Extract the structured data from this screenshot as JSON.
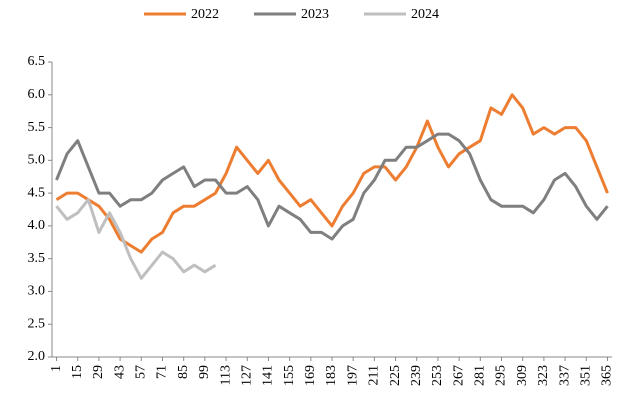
{
  "chart_data": {
    "type": "line",
    "x": [
      1,
      8,
      15,
      22,
      29,
      36,
      43,
      50,
      57,
      64,
      71,
      78,
      85,
      92,
      99,
      106,
      113,
      120,
      127,
      134,
      141,
      148,
      155,
      162,
      169,
      176,
      183,
      190,
      197,
      204,
      211,
      218,
      225,
      232,
      239,
      246,
      253,
      260,
      267,
      274,
      281,
      288,
      295,
      302,
      309,
      316,
      323,
      330,
      337,
      344,
      351,
      358,
      365
    ],
    "series": [
      {
        "name": "2022",
        "color": "#ed7d31",
        "values": [
          4.4,
          4.5,
          4.5,
          4.4,
          4.3,
          4.1,
          3.8,
          3.7,
          3.6,
          3.8,
          3.9,
          4.2,
          4.3,
          4.3,
          4.4,
          4.5,
          4.8,
          5.2,
          5.0,
          4.8,
          5.0,
          4.7,
          4.5,
          4.3,
          4.4,
          4.2,
          4.0,
          4.3,
          4.5,
          4.8,
          4.9,
          4.9,
          4.7,
          4.9,
          5.2,
          5.6,
          5.2,
          4.9,
          5.1,
          5.2,
          5.3,
          5.8,
          5.7,
          6.0,
          5.8,
          5.4,
          5.5,
          5.4,
          5.5,
          5.5,
          5.3,
          4.9,
          4.5
        ]
      },
      {
        "name": "2023",
        "color": "#7f7f7f",
        "values": [
          4.7,
          5.1,
          5.3,
          4.9,
          4.5,
          4.5,
          4.3,
          4.4,
          4.4,
          4.5,
          4.7,
          4.8,
          4.9,
          4.6,
          4.7,
          4.7,
          4.5,
          4.5,
          4.6,
          4.4,
          4.0,
          4.3,
          4.2,
          4.1,
          3.9,
          3.9,
          3.8,
          4.0,
          4.1,
          4.5,
          4.7,
          5.0,
          5.0,
          5.2,
          5.2,
          5.3,
          5.4,
          5.4,
          5.3,
          5.1,
          4.7,
          4.4,
          4.3,
          4.3,
          4.3,
          4.2,
          4.4,
          4.7,
          4.8,
          4.6,
          4.3,
          4.1,
          4.3
        ]
      },
      {
        "name": "2024",
        "color": "#bfbfbf",
        "values": [
          4.3,
          4.1,
          4.2,
          4.4,
          3.9,
          4.2,
          3.9,
          3.5,
          3.2,
          3.4,
          3.6,
          3.5,
          3.3,
          3.4,
          3.3,
          3.4,
          null,
          null,
          null,
          null,
          null,
          null,
          null,
          null,
          null,
          null,
          null,
          null,
          null,
          null,
          null,
          null,
          null,
          null,
          null,
          null,
          null,
          null,
          null,
          null,
          null,
          null,
          null,
          null,
          null,
          null,
          null,
          null,
          null,
          null,
          null,
          null,
          null
        ]
      }
    ],
    "xlim": [
      -2,
      368
    ],
    "xticks": [
      1,
      15,
      29,
      43,
      57,
      71,
      85,
      99,
      113,
      127,
      141,
      155,
      169,
      183,
      197,
      211,
      225,
      239,
      253,
      267,
      281,
      295,
      309,
      323,
      337,
      351,
      365
    ],
    "ylim": [
      2.0,
      6.5
    ],
    "yticks": [
      {
        "value": 2,
        "label": "2.0"
      },
      2.5,
      {
        "value": 3,
        "label": "3.0"
      },
      3.5,
      {
        "value": 4,
        "label": "4.0"
      },
      4.5,
      {
        "value": 5,
        "label": "5.0"
      },
      5.5,
      {
        "value": 6,
        "label": "6.0"
      },
      6.5
    ],
    "legend": "top"
  }
}
